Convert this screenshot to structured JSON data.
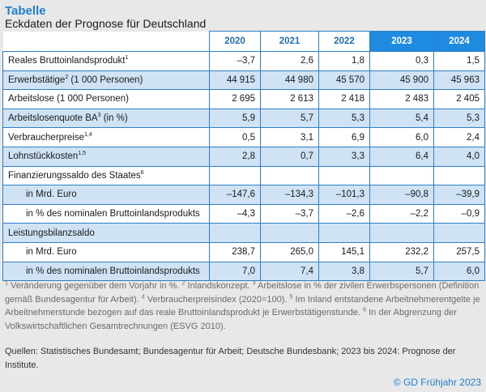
{
  "title": "Tabelle",
  "subtitle": "Eckdaten der Prognose für Deutschland",
  "years": [
    "2020",
    "2021",
    "2022",
    "2023",
    "2024"
  ],
  "rows": [
    {
      "label": "Reales Bruttoinlandsprodukt",
      "sup": "1",
      "values": [
        "–3,7",
        "2,6",
        "1,8",
        "0,3",
        "1,5"
      ]
    },
    {
      "label": "Erwerbstätige",
      "sup": "2",
      "label_suffix": " (1 000 Personen)",
      "values": [
        "44 915",
        "44 980",
        "45 570",
        "45 900",
        "45 963"
      ]
    },
    {
      "label": "Arbeitslose (1 000 Personen)",
      "sup": "",
      "values": [
        "2 695",
        "2 613",
        "2 418",
        "2 483",
        "2 405"
      ]
    },
    {
      "label": "Arbeitslosenquote BA",
      "sup": "3",
      "label_suffix": " (in %)",
      "values": [
        "5,9",
        "5,7",
        "5,3",
        "5,4",
        "5,3"
      ]
    },
    {
      "label": "Verbraucherpreise",
      "sup": "1,4",
      "values": [
        "0,5",
        "3,1",
        "6,9",
        "6,0",
        "2,4"
      ]
    },
    {
      "label": "Lohnstückkosten",
      "sup": "1,5",
      "values": [
        "2,8",
        "0,7",
        "3,3",
        "6,4",
        "4,0"
      ]
    },
    {
      "label": "Finanzierungssaldo des Staates",
      "sup": "6",
      "values": [
        "",
        "",
        "",
        "",
        ""
      ]
    },
    {
      "label": "in Mrd. Euro",
      "sup": "",
      "indent": true,
      "values": [
        "–147,6",
        "–134,3",
        "–101,3",
        "–90,8",
        "–39,9"
      ]
    },
    {
      "label": "in % des nominalen Bruttoinlandsprodukts",
      "sup": "",
      "indent": true,
      "values": [
        "–4,3",
        "–3,7",
        "–2,6",
        "–2,2",
        "–0,9"
      ]
    },
    {
      "label": "Leistungsbilanzsaldo",
      "sup": "",
      "values": [
        "",
        "",
        "",
        "",
        ""
      ]
    },
    {
      "label": "in Mrd. Euro",
      "sup": "",
      "indent": true,
      "values": [
        "238,7",
        "265,0",
        "145,1",
        "232,2",
        "257,5"
      ]
    },
    {
      "label": "in % des nominalen Bruttoinlandsprodukts",
      "sup": "",
      "indent": true,
      "values": [
        "7,0",
        "7,4",
        "3,8",
        "5,7",
        "6,0"
      ]
    }
  ],
  "notes": {
    "n1": "Veränderung gegenüber dem Vorjahr in %. ",
    "n2": "Inlandskonzept. ",
    "n3": "Arbeitslose in % der zivilen Erwerbspersonen (Definition gemäß Bundesagentur für Arbeit). ",
    "n4": "Verbraucherpreisindex (2020=100). ",
    "n5": "Im Inland entstandene Arbeitnehmerentgelte je Arbeitnehmerstunde bezogen auf das reale Bruttoinlandsprodukt je Erwerbstätigenstunde. ",
    "n6": "In der Abgrenzung der Volkswirtschaftlichen Gesamtrechnungen (ESVG 2010)."
  },
  "sources": "Quellen: Statistisches Bundesamt; Bundesagentur für Arbeit; Deutsche Bundesbank; 2023 bis 2024: Prognose der Institute.",
  "copyright": "© GD Frühjahr 2023",
  "colors": {
    "accent": "#1f7fcc",
    "projection_header": "#1e8ae0",
    "band": "#cfe3f5"
  }
}
